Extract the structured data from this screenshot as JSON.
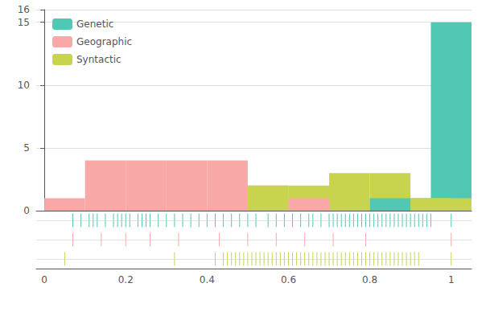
{
  "chart_data": {
    "type": "histogram",
    "xlim": [
      -0.02,
      1.05
    ],
    "xticks": [
      0,
      0.2,
      0.4,
      0.6,
      0.8,
      1
    ],
    "ylim": [
      0,
      16
    ],
    "yticks": [
      0,
      5,
      10,
      15
    ],
    "grid": true,
    "legend": "upper left",
    "series": [
      {
        "name": "Genetic",
        "color": "#50c8b4",
        "x": [
          0.05,
          0.15,
          0.25,
          0.35,
          0.45,
          0.55,
          0.65,
          0.75,
          0.85,
          0.95,
          1
        ],
        "values": [
          0,
          0,
          0,
          0,
          0,
          0,
          0,
          0,
          1,
          1,
          15
        ],
        "rug": [
          0.07,
          0.09,
          0.11,
          0.12,
          0.13,
          0.15,
          0.17,
          0.18,
          0.19,
          0.2,
          0.21,
          0.23,
          0.24,
          0.25,
          0.26,
          0.28,
          0.3,
          0.32,
          0.34,
          0.36,
          0.38,
          0.4,
          0.42,
          0.44,
          0.46,
          0.48,
          0.5,
          0.52,
          0.55,
          0.57,
          0.59,
          0.61,
          0.63,
          0.65,
          0.66,
          0.68,
          0.7,
          0.71,
          0.72,
          0.73,
          0.74,
          0.75,
          0.76,
          0.77,
          0.78,
          0.79,
          0.8,
          0.81,
          0.82,
          0.83,
          0.84,
          0.85,
          0.86,
          0.87,
          0.88,
          0.89,
          0.9,
          0.91,
          0.92,
          0.93,
          0.94,
          0.95,
          1.0
        ]
      },
      {
        "name": "Geographic",
        "color": "#f9a8a8",
        "x": [
          0.05,
          0.15,
          0.25,
          0.35,
          0.45,
          0.55,
          0.65,
          0.75,
          0.85,
          0.95
        ],
        "values": [
          1,
          4,
          4,
          4,
          4,
          2,
          1,
          0,
          0,
          0
        ],
        "rug": [
          0.07,
          0.14,
          0.2,
          0.26,
          0.33,
          0.43,
          0.5,
          0.57,
          0.64,
          0.71,
          0.79,
          1.0
        ]
      },
      {
        "name": "Syntactic",
        "color": "#c8d44e",
        "x": [
          0.05,
          0.15,
          0.25,
          0.35,
          0.45,
          0.55,
          0.65,
          0.75,
          0.85,
          0.95,
          1
        ],
        "values": [
          0,
          0,
          0,
          0,
          0,
          2,
          2,
          3,
          3,
          1,
          1
        ],
        "rug": [
          0.05,
          0.32,
          0.42,
          0.44,
          0.45,
          0.46,
          0.47,
          0.48,
          0.49,
          0.5,
          0.51,
          0.52,
          0.53,
          0.54,
          0.55,
          0.56,
          0.57,
          0.58,
          0.59,
          0.6,
          0.61,
          0.62,
          0.63,
          0.64,
          0.65,
          0.66,
          0.67,
          0.68,
          0.69,
          0.7,
          0.71,
          0.72,
          0.73,
          0.74,
          0.75,
          0.76,
          0.77,
          0.78,
          0.79,
          0.8,
          0.81,
          0.82,
          0.83,
          0.84,
          0.85,
          0.86,
          0.87,
          0.88,
          0.89,
          0.9,
          0.91,
          0.92,
          1.0
        ]
      }
    ]
  }
}
